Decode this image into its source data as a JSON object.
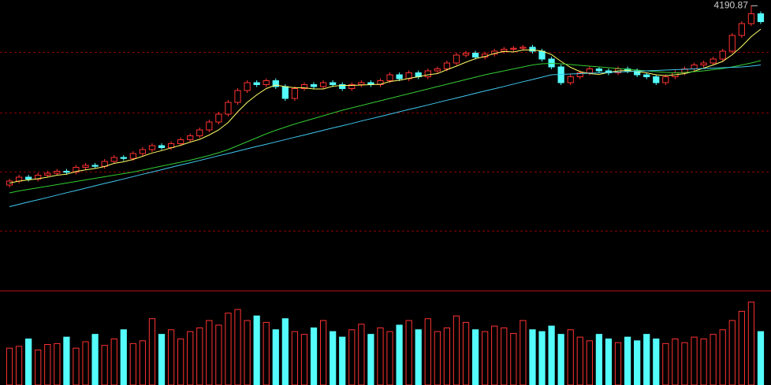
{
  "chart_data": {
    "type": "candlestick",
    "up_color": "#ff3232",
    "down_color": "#54fcfc",
    "grid_color": "#8b0000",
    "grid": true,
    "ylim": [
      2748,
      4200
    ],
    "yticks": [
      3048,
      3348,
      3648,
      3956
    ],
    "volume_ylim": [
      0,
      100
    ],
    "candles": {
      "open": [
        3280,
        3300,
        3320,
        3310,
        3330,
        3340,
        3350,
        3345,
        3370,
        3380,
        3375,
        3400,
        3420,
        3415,
        3440,
        3460,
        3480,
        3470,
        3490,
        3510,
        3530,
        3560,
        3600,
        3640,
        3700,
        3760,
        3800,
        3790,
        3810,
        3780,
        3720,
        3770,
        3790,
        3780,
        3800,
        3790,
        3770,
        3790,
        3800,
        3790,
        3810,
        3840,
        3820,
        3850,
        3830,
        3860,
        3870,
        3900,
        3940,
        3950,
        3930,
        3945,
        3960,
        3970,
        3975,
        3980,
        3960,
        3920,
        3880,
        3800,
        3830,
        3850,
        3870,
        3860,
        3850,
        3870,
        3860,
        3840,
        3830,
        3800,
        3830,
        3850,
        3870,
        3890,
        3900,
        3920,
        3960,
        4040,
        4100,
        4150
      ],
      "high": [
        3312,
        3332,
        3332,
        3342,
        3352,
        3362,
        3362,
        3382,
        3392,
        3392,
        3412,
        3432,
        3432,
        3452,
        3472,
        3492,
        3492,
        3502,
        3522,
        3542,
        3572,
        3612,
        3652,
        3712,
        3772,
        3812,
        3812,
        3822,
        3822,
        3792,
        3782,
        3802,
        3802,
        3812,
        3812,
        3802,
        3802,
        3812,
        3812,
        3822,
        3852,
        3852,
        3862,
        3862,
        3872,
        3882,
        3912,
        3952,
        3962,
        3962,
        3957,
        3972,
        3982,
        3987,
        3992,
        3992,
        3972,
        3932,
        3892,
        3842,
        3862,
        3882,
        3882,
        3872,
        3882,
        3882,
        3872,
        3852,
        3842,
        3842,
        3862,
        3882,
        3902,
        3912,
        3932,
        3972,
        4052,
        4112,
        4190.87,
        4162
      ],
      "low": [
        3268,
        3288,
        3298,
        3298,
        3318,
        3328,
        3333,
        3333,
        3358,
        3363,
        3363,
        3388,
        3403,
        3403,
        3428,
        3448,
        3458,
        3458,
        3478,
        3498,
        3518,
        3548,
        3588,
        3628,
        3688,
        3748,
        3778,
        3778,
        3768,
        3708,
        3708,
        3758,
        3768,
        3768,
        3778,
        3758,
        3758,
        3778,
        3778,
        3778,
        3798,
        3808,
        3808,
        3818,
        3818,
        3848,
        3858,
        3888,
        3928,
        3918,
        3918,
        3933,
        3948,
        3958,
        3963,
        3948,
        3908,
        3868,
        3788,
        3788,
        3818,
        3838,
        3848,
        3838,
        3838,
        3848,
        3828,
        3818,
        3788,
        3788,
        3818,
        3838,
        3858,
        3878,
        3888,
        3908,
        3948,
        4028,
        4088,
        4098
      ],
      "close": [
        3300,
        3320,
        3310,
        3330,
        3340,
        3350,
        3345,
        3370,
        3380,
        3375,
        3400,
        3420,
        3415,
        3440,
        3460,
        3480,
        3470,
        3490,
        3510,
        3530,
        3560,
        3600,
        3640,
        3700,
        3760,
        3800,
        3790,
        3810,
        3780,
        3720,
        3770,
        3790,
        3780,
        3800,
        3790,
        3770,
        3790,
        3800,
        3790,
        3810,
        3840,
        3820,
        3850,
        3830,
        3860,
        3870,
        3900,
        3940,
        3950,
        3930,
        3945,
        3960,
        3970,
        3975,
        3980,
        3960,
        3920,
        3880,
        3800,
        3830,
        3850,
        3870,
        3860,
        3850,
        3870,
        3860,
        3840,
        3830,
        3800,
        3830,
        3850,
        3870,
        3890,
        3900,
        3920,
        3960,
        4040,
        4100,
        4150,
        4110
      ]
    },
    "ma_series": [
      {
        "color": "#ffff66",
        "values": [
          3290,
          3300,
          3306,
          3312,
          3320,
          3330,
          3335,
          3349,
          3357,
          3364,
          3374,
          3390,
          3398,
          3410,
          3426,
          3443,
          3455,
          3469,
          3482,
          3498,
          3512,
          3534,
          3560,
          3598,
          3652,
          3700,
          3738,
          3770,
          3788,
          3780,
          3774,
          3774,
          3768,
          3768,
          3782,
          3786,
          3786,
          3788,
          3790,
          3792,
          3806,
          3812,
          3822,
          3830,
          3840,
          3846,
          3866,
          3884,
          3904,
          3922,
          3933,
          3949,
          3959,
          3956,
          3966,
          3966,
          3961,
          3943,
          3908,
          3878,
          3856,
          3846,
          3842,
          3852,
          3860,
          3862,
          3856,
          3850,
          3840,
          3836,
          3840,
          3846,
          3858,
          3874,
          3890,
          3908,
          3942,
          3984,
          4034,
          4072
        ]
      },
      {
        "color": "#33cc33",
        "values": [
          3240,
          3250,
          3258,
          3266,
          3274,
          3282,
          3290,
          3298,
          3306,
          3314,
          3322,
          3330,
          3338,
          3346,
          3356,
          3366,
          3376,
          3386,
          3396,
          3406,
          3418,
          3430,
          3444,
          3460,
          3480,
          3500,
          3520,
          3540,
          3558,
          3574,
          3590,
          3604,
          3618,
          3632,
          3646,
          3660,
          3672,
          3684,
          3696,
          3708,
          3720,
          3732,
          3744,
          3756,
          3768,
          3780,
          3792,
          3804,
          3816,
          3828,
          3840,
          3850,
          3860,
          3870,
          3880,
          3890,
          3896,
          3898,
          3896,
          3892,
          3888,
          3884,
          3880,
          3876,
          3872,
          3868,
          3864,
          3860,
          3856,
          3852,
          3850,
          3852,
          3856,
          3860,
          3866,
          3872,
          3880,
          3890,
          3900,
          3912
        ]
      },
      {
        "color": "#40c8f0",
        "values": [
          3170,
          3182,
          3194,
          3205,
          3217,
          3229,
          3241,
          3252,
          3264,
          3276,
          3288,
          3299,
          3311,
          3323,
          3335,
          3346,
          3358,
          3370,
          3382,
          3393,
          3405,
          3417,
          3429,
          3440,
          3452,
          3464,
          3476,
          3487,
          3499,
          3511,
          3523,
          3534,
          3546,
          3558,
          3570,
          3581,
          3593,
          3605,
          3617,
          3628,
          3640,
          3652,
          3664,
          3675,
          3687,
          3699,
          3711,
          3722,
          3734,
          3746,
          3758,
          3769,
          3781,
          3793,
          3805,
          3816,
          3828,
          3840,
          3842,
          3844,
          3846,
          3848,
          3850,
          3852,
          3854,
          3856,
          3858,
          3860,
          3862,
          3864,
          3866,
          3868,
          3870,
          3872,
          3874,
          3876,
          3878,
          3880,
          3884,
          3890
        ]
      }
    ],
    "volume": [
      40,
      42,
      50,
      38,
      44,
      45,
      52,
      40,
      47,
      55,
      43,
      50,
      60,
      45,
      48,
      72,
      55,
      60,
      50,
      58,
      62,
      70,
      65,
      78,
      82,
      70,
      75,
      68,
      60,
      72,
      58,
      55,
      62,
      70,
      58,
      52,
      60,
      66,
      55,
      62,
      58,
      65,
      70,
      60,
      72,
      58,
      62,
      75,
      68,
      60,
      58,
      64,
      62,
      56,
      70,
      60,
      58,
      64,
      55,
      60,
      52,
      48,
      55,
      50,
      46,
      52,
      48,
      55,
      50,
      45,
      50,
      46,
      52,
      50,
      55,
      60,
      70,
      80,
      90,
      58
    ]
  }
}
